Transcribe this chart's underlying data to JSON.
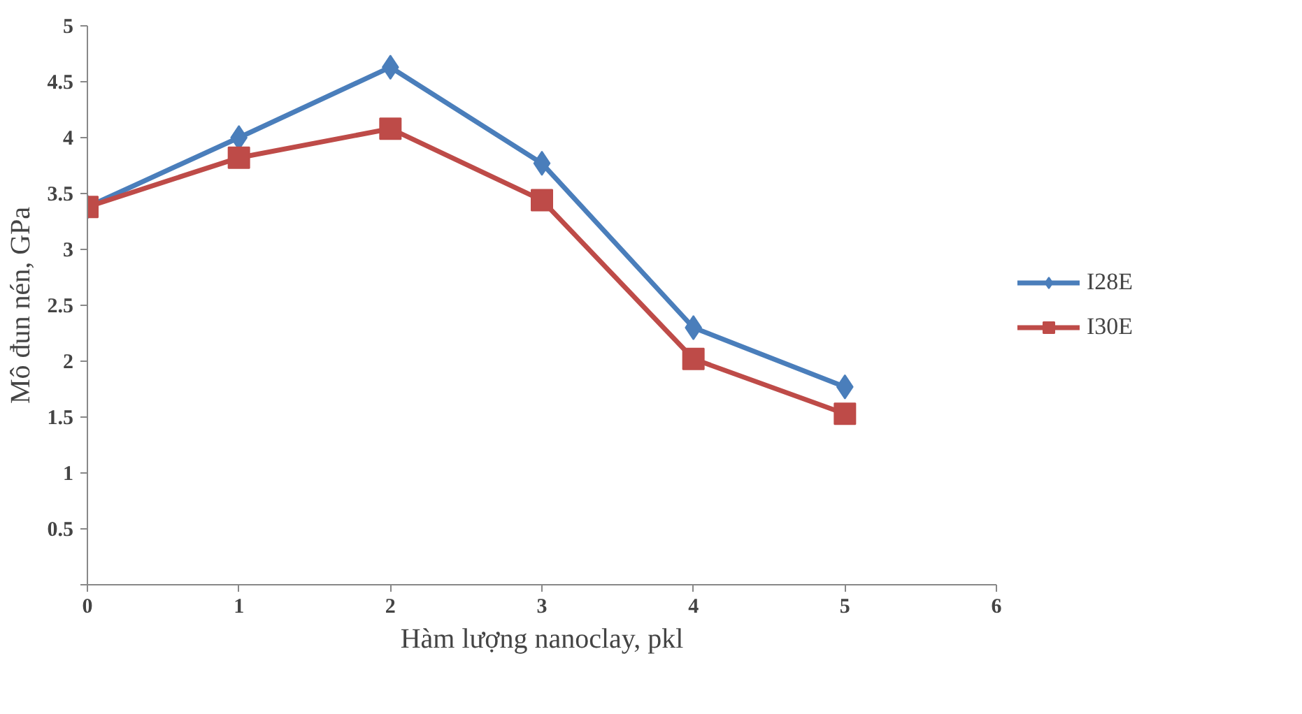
{
  "chart_data": {
    "type": "line",
    "xlabel": "Hàm lượng nanoclay, pkl",
    "ylabel": "Mô đun nén, GPa",
    "x": [
      0,
      1,
      2,
      3,
      4,
      5
    ],
    "series": [
      {
        "name": "I28E",
        "color": "#4a7ebb",
        "marker": "diamond",
        "values": [
          3.38,
          4.0,
          4.63,
          3.77,
          2.3,
          1.77
        ]
      },
      {
        "name": "I30E",
        "color": "#be4b48",
        "marker": "square",
        "values": [
          3.38,
          3.82,
          4.08,
          3.44,
          2.02,
          1.53
        ]
      }
    ],
    "xlim": [
      0,
      6
    ],
    "xticks": [
      0,
      1,
      2,
      3,
      4,
      5,
      6
    ],
    "ylim": [
      0,
      5
    ],
    "yticks": [
      {
        "value": 0,
        "label": null
      },
      0.5,
      1,
      1.5,
      2,
      2.5,
      3,
      3.5,
      4,
      4.5,
      5
    ],
    "grid": false,
    "legend": "right",
    "line_style": "solid"
  }
}
